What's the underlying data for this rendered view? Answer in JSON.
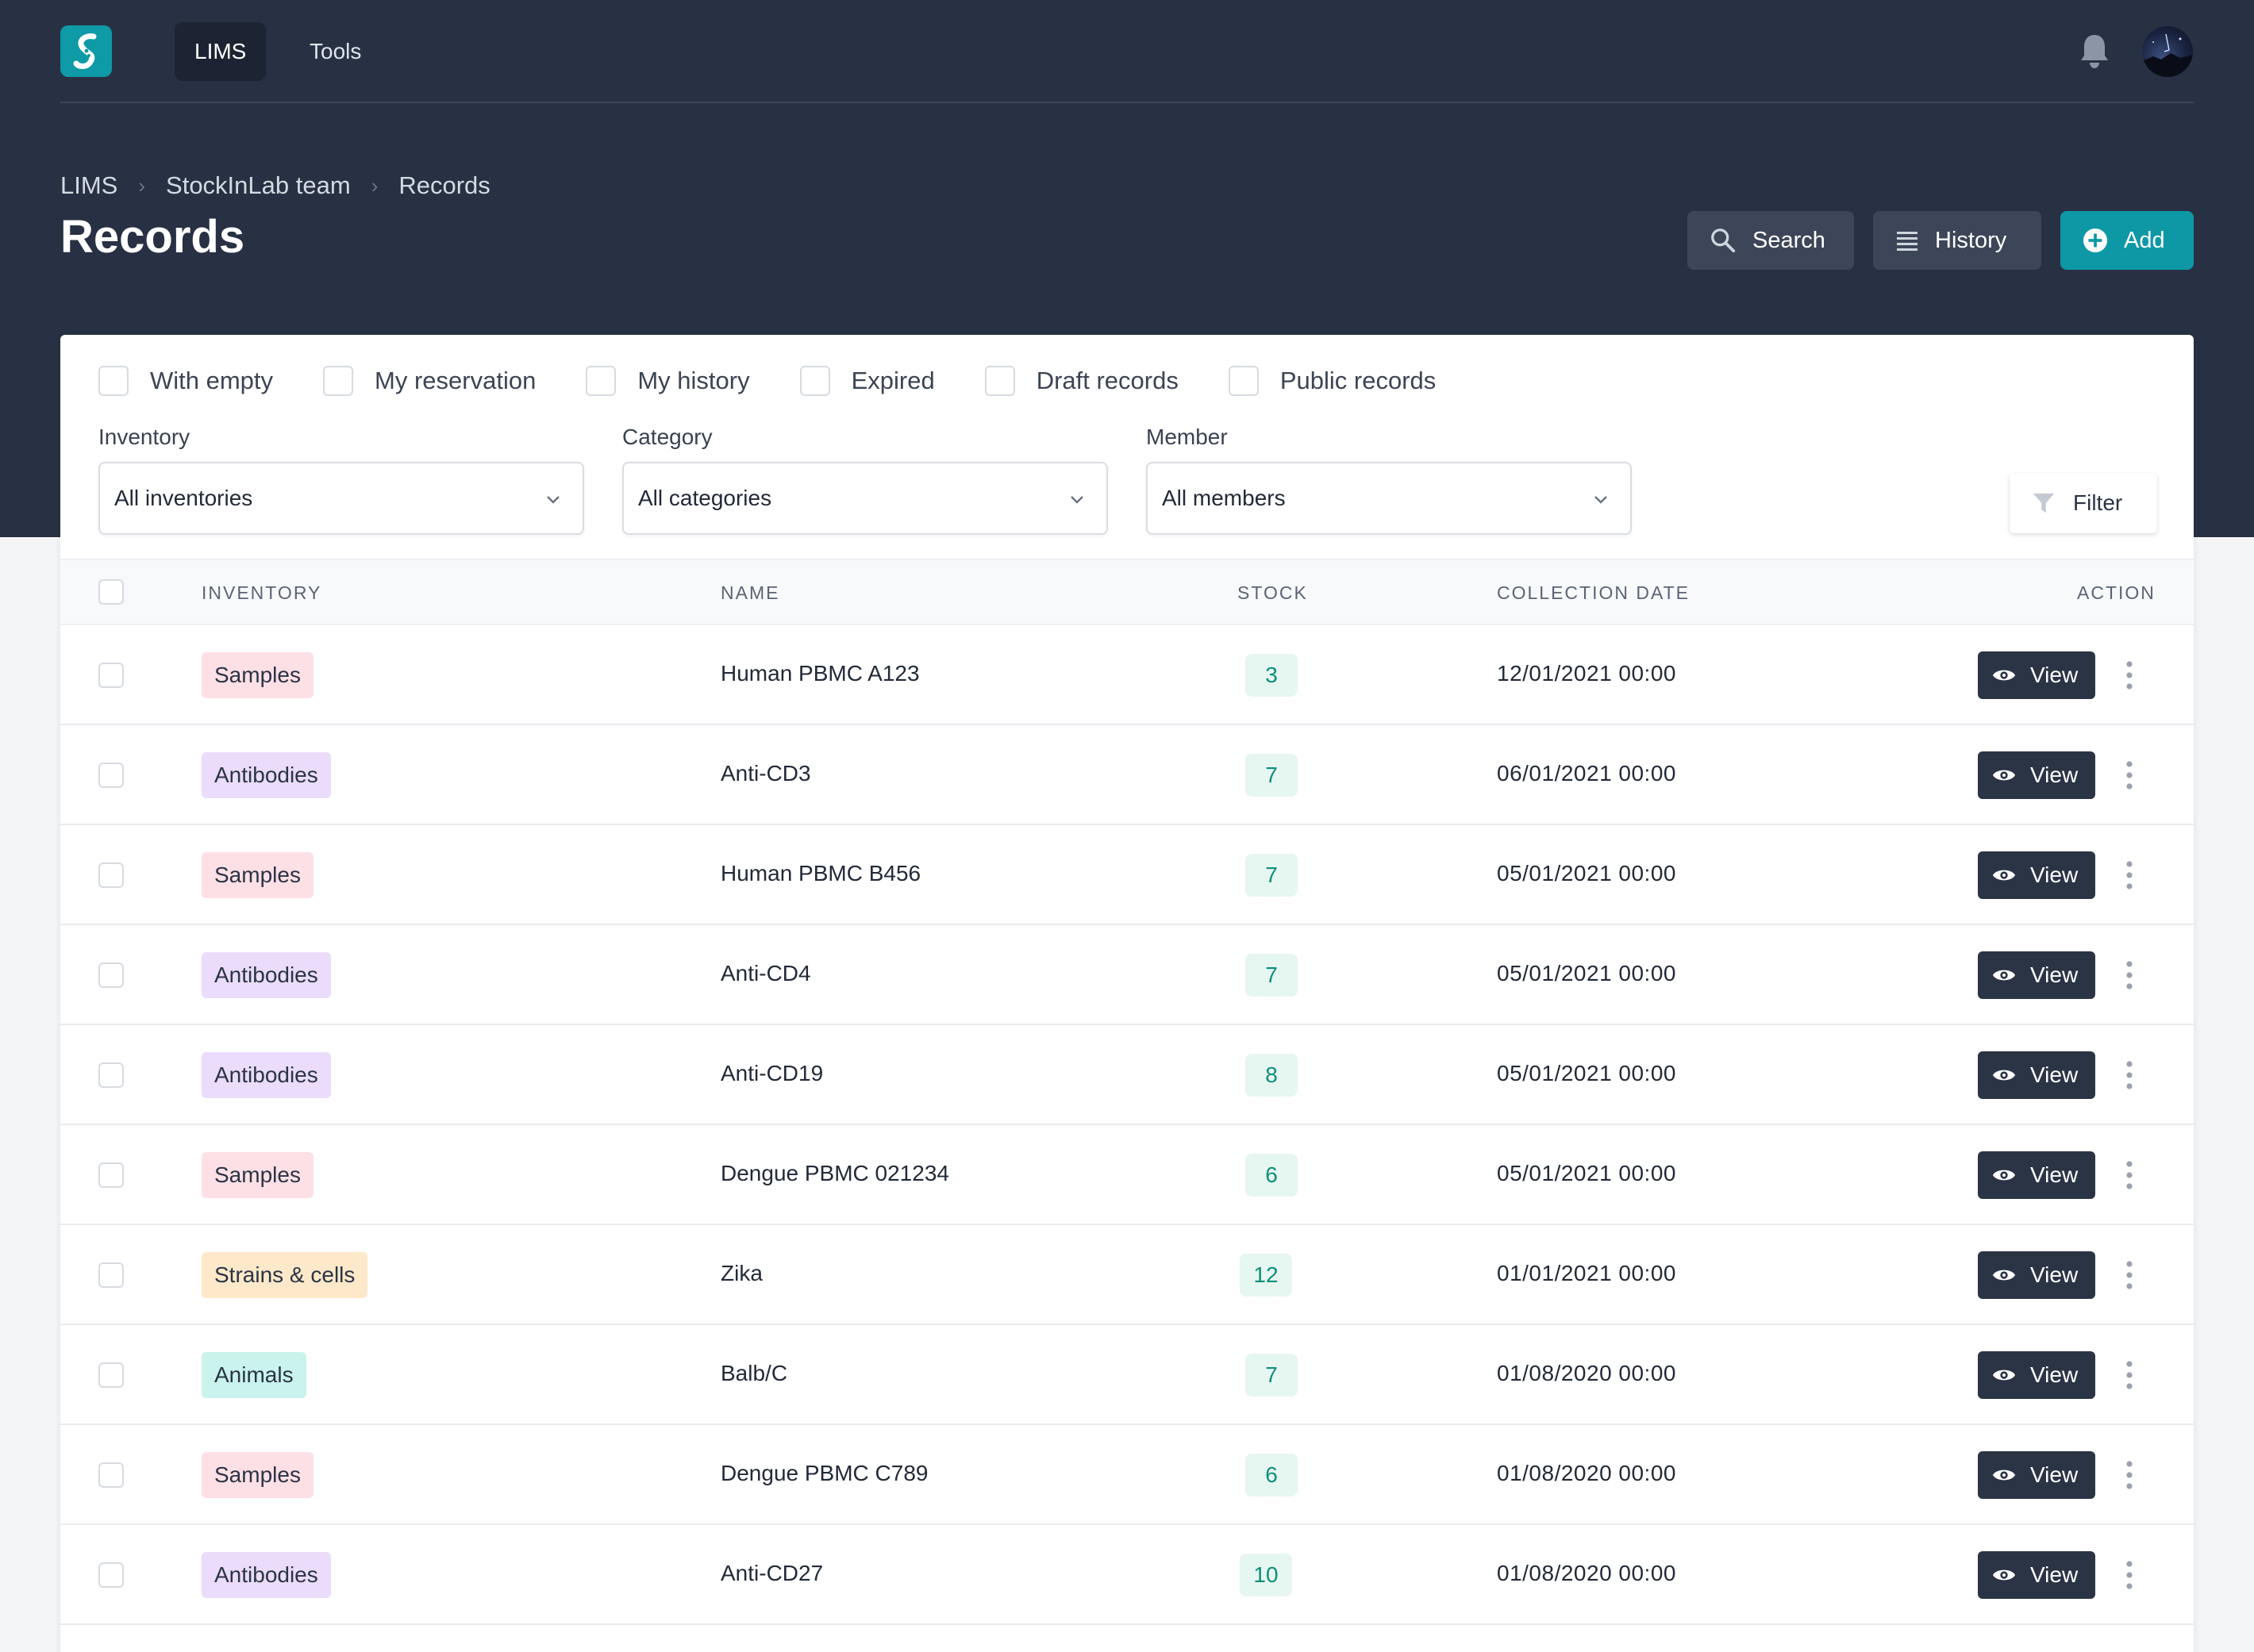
{
  "nav": {
    "items": [
      {
        "label": "LIMS",
        "active": true
      },
      {
        "label": "Tools",
        "active": false
      }
    ]
  },
  "breadcrumb": [
    "LIMS",
    "StockInLab team",
    "Records"
  ],
  "page_title": "Records",
  "header_buttons": {
    "search": "Search",
    "history": "History",
    "add": "Add"
  },
  "toggles": [
    "With empty",
    "My reservation",
    "My history",
    "Expired",
    "Draft records",
    "Public records"
  ],
  "filters": {
    "inventory": {
      "label": "Inventory",
      "value": "All inventories"
    },
    "category": {
      "label": "Category",
      "value": "All categories"
    },
    "member": {
      "label": "Member",
      "value": "All members"
    },
    "button": "Filter"
  },
  "table": {
    "columns": [
      "INVENTORY",
      "NAME",
      "STOCK",
      "COLLECTION DATE",
      "ACTION"
    ],
    "view_label": "View",
    "rows": [
      {
        "inventory": "Samples",
        "kind": "samples",
        "name": "Human PBMC A123",
        "stock": "3",
        "date": "12/01/2021 00:00"
      },
      {
        "inventory": "Antibodies",
        "kind": "antibodies",
        "name": "Anti-CD3",
        "stock": "7",
        "date": "06/01/2021 00:00"
      },
      {
        "inventory": "Samples",
        "kind": "samples",
        "name": "Human PBMC B456",
        "stock": "7",
        "date": "05/01/2021 00:00"
      },
      {
        "inventory": "Antibodies",
        "kind": "antibodies",
        "name": "Anti-CD4",
        "stock": "7",
        "date": "05/01/2021 00:00"
      },
      {
        "inventory": "Antibodies",
        "kind": "antibodies",
        "name": "Anti-CD19",
        "stock": "8",
        "date": "05/01/2021 00:00"
      },
      {
        "inventory": "Samples",
        "kind": "samples",
        "name": "Dengue PBMC 021234",
        "stock": "6",
        "date": "05/01/2021 00:00"
      },
      {
        "inventory": "Strains & cells",
        "kind": "strains",
        "name": "Zika",
        "stock": "12",
        "date": "01/01/2021 00:00"
      },
      {
        "inventory": "Animals",
        "kind": "animals",
        "name": "Balb/C",
        "stock": "7",
        "date": "01/08/2020 00:00"
      },
      {
        "inventory": "Samples",
        "kind": "samples",
        "name": "Dengue PBMC C789",
        "stock": "6",
        "date": "01/08/2020 00:00"
      },
      {
        "inventory": "Antibodies",
        "kind": "antibodies",
        "name": "Anti-CD27",
        "stock": "10",
        "date": "01/08/2020 00:00"
      }
    ]
  },
  "colors": {
    "header_bg": "#283143",
    "accent": "#0e98a6",
    "tag_samples": "#fde0e6",
    "tag_antibodies": "#eadcfa",
    "tag_strains": "#fde9c9",
    "tag_animals": "#c9f3ec",
    "stock_badge": "#e6f6f1"
  },
  "icons": {
    "logo": "stockinlab-logo-icon",
    "notifications": "bell-icon",
    "search": "search-icon",
    "history": "list-icon",
    "add": "plus-circle-icon",
    "filter": "funnel-icon",
    "view": "eye-icon",
    "more": "kebab-icon"
  }
}
